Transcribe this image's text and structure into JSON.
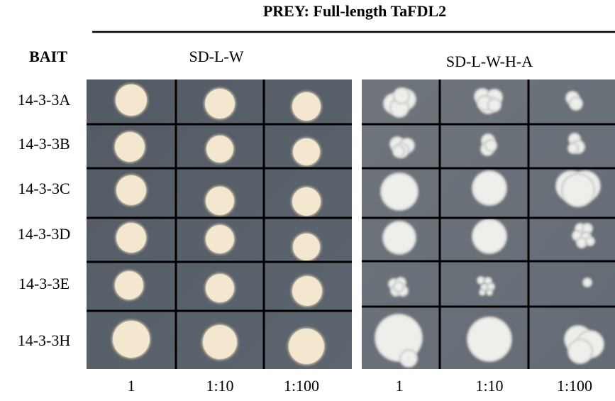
{
  "header": {
    "title": "PREY: Full-length TaFDL2",
    "bait_label": "BAIT"
  },
  "rows": [
    "14-3-3A",
    "14-3-3B",
    "14-3-3C",
    "14-3-3D",
    "14-3-3E",
    "14-3-3H"
  ],
  "panels": [
    {
      "medium": "SD-L-W",
      "dilutions": [
        "1",
        "1:10",
        "1:100"
      ]
    },
    {
      "medium": "SD-L-W-H-A",
      "dilutions": [
        "1",
        "1:10",
        "1:100"
      ]
    }
  ]
}
